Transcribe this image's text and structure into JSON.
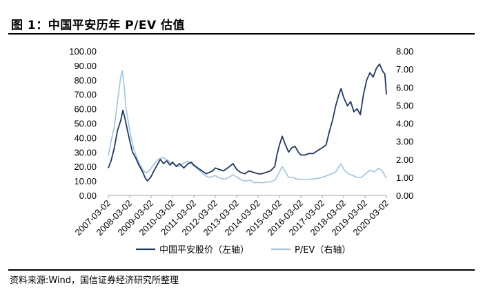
{
  "figure": {
    "title": "图 1：中国平安历年 P/EV 估值",
    "source": "资料来源:Wind，国信证券经济研究所整理"
  },
  "chart_data": {
    "type": "line",
    "title": "中国平安历年 P/EV 估值",
    "x_tick_labels": [
      "2007-03-02",
      "2008-03-02",
      "2009-03-02",
      "2010-03-02",
      "2011-03-02",
      "2012-03-02",
      "2013-03-02",
      "2014-03-02",
      "2015-03-02",
      "2016-03-02",
      "2017-03-02",
      "2018-03-02",
      "2019-03-02",
      "2020-03-02"
    ],
    "left_axis": {
      "range": [
        0,
        100
      ],
      "ticks": [
        "0.00",
        "10.00",
        "20.00",
        "30.00",
        "40.00",
        "50.00",
        "60.00",
        "70.00",
        "80.00",
        "90.00",
        "100.00"
      ]
    },
    "right_axis": {
      "range": [
        0,
        8
      ],
      "ticks": [
        "0.00",
        "1.00",
        "2.00",
        "3.00",
        "4.00",
        "5.00",
        "6.00",
        "7.00",
        "8.00"
      ]
    },
    "x_range": [
      2007.17,
      2020.17
    ],
    "series": [
      {
        "name": "中国平安股价（左轴）",
        "axis": "left",
        "color": "#1f3864",
        "points": [
          [
            2007.17,
            19
          ],
          [
            2007.3,
            24
          ],
          [
            2007.45,
            33
          ],
          [
            2007.6,
            45
          ],
          [
            2007.75,
            52
          ],
          [
            2007.85,
            59
          ],
          [
            2007.95,
            53
          ],
          [
            2008.05,
            46
          ],
          [
            2008.17,
            38
          ],
          [
            2008.3,
            30
          ],
          [
            2008.45,
            26
          ],
          [
            2008.6,
            21
          ],
          [
            2008.75,
            17
          ],
          [
            2008.9,
            12
          ],
          [
            2009.0,
            10
          ],
          [
            2009.17,
            13
          ],
          [
            2009.3,
            17
          ],
          [
            2009.45,
            21
          ],
          [
            2009.6,
            25
          ],
          [
            2009.75,
            22
          ],
          [
            2009.9,
            24
          ],
          [
            2010.05,
            21
          ],
          [
            2010.17,
            23
          ],
          [
            2010.35,
            20
          ],
          [
            2010.5,
            22
          ],
          [
            2010.7,
            19
          ],
          [
            2010.9,
            22
          ],
          [
            2011.05,
            23
          ],
          [
            2011.17,
            21
          ],
          [
            2011.35,
            19
          ],
          [
            2011.55,
            17
          ],
          [
            2011.75,
            15
          ],
          [
            2011.9,
            16
          ],
          [
            2012.05,
            17
          ],
          [
            2012.17,
            19
          ],
          [
            2012.35,
            18
          ],
          [
            2012.55,
            17
          ],
          [
            2012.75,
            19
          ],
          [
            2013.0,
            22
          ],
          [
            2013.17,
            18
          ],
          [
            2013.35,
            16
          ],
          [
            2013.55,
            15
          ],
          [
            2013.75,
            17
          ],
          [
            2013.95,
            16
          ],
          [
            2014.17,
            15
          ],
          [
            2014.35,
            15
          ],
          [
            2014.55,
            16
          ],
          [
            2014.75,
            17
          ],
          [
            2014.95,
            20
          ],
          [
            2015.05,
            28
          ],
          [
            2015.17,
            35
          ],
          [
            2015.3,
            41
          ],
          [
            2015.45,
            35
          ],
          [
            2015.6,
            30
          ],
          [
            2015.75,
            33
          ],
          [
            2015.9,
            34
          ],
          [
            2016.05,
            30
          ],
          [
            2016.17,
            28
          ],
          [
            2016.35,
            28
          ],
          [
            2016.55,
            29
          ],
          [
            2016.75,
            29
          ],
          [
            2016.95,
            31
          ],
          [
            2017.17,
            33
          ],
          [
            2017.35,
            35
          ],
          [
            2017.5,
            44
          ],
          [
            2017.65,
            52
          ],
          [
            2017.8,
            62
          ],
          [
            2017.95,
            70
          ],
          [
            2018.05,
            74
          ],
          [
            2018.17,
            68
          ],
          [
            2018.35,
            62
          ],
          [
            2018.5,
            65
          ],
          [
            2018.65,
            58
          ],
          [
            2018.8,
            60
          ],
          [
            2018.95,
            56
          ],
          [
            2019.1,
            70
          ],
          [
            2019.25,
            80
          ],
          [
            2019.4,
            85
          ],
          [
            2019.55,
            82
          ],
          [
            2019.7,
            88
          ],
          [
            2019.85,
            91
          ],
          [
            2020.0,
            86
          ],
          [
            2020.1,
            84
          ],
          [
            2020.17,
            70
          ]
        ]
      },
      {
        "name": "P/EV（右轴）",
        "axis": "right",
        "color": "#9dc3e6",
        "points": [
          [
            2007.17,
            2.2
          ],
          [
            2007.3,
            3.0
          ],
          [
            2007.45,
            3.8
          ],
          [
            2007.6,
            5.2
          ],
          [
            2007.75,
            6.6
          ],
          [
            2007.82,
            6.9
          ],
          [
            2007.9,
            6.2
          ],
          [
            2008.0,
            4.8
          ],
          [
            2008.17,
            3.6
          ],
          [
            2008.35,
            2.6
          ],
          [
            2008.5,
            2.1
          ],
          [
            2008.65,
            1.7
          ],
          [
            2008.8,
            1.4
          ],
          [
            2008.9,
            1.25
          ],
          [
            2009.0,
            1.3
          ],
          [
            2009.17,
            1.5
          ],
          [
            2009.35,
            1.8
          ],
          [
            2009.5,
            2.0
          ],
          [
            2009.7,
            2.1
          ],
          [
            2009.9,
            2.0
          ],
          [
            2010.1,
            1.8
          ],
          [
            2010.3,
            1.7
          ],
          [
            2010.5,
            1.6
          ],
          [
            2010.7,
            1.8
          ],
          [
            2010.9,
            1.9
          ],
          [
            2011.1,
            1.7
          ],
          [
            2011.3,
            1.5
          ],
          [
            2011.5,
            1.3
          ],
          [
            2011.7,
            1.1
          ],
          [
            2011.9,
            1.0
          ],
          [
            2012.17,
            1.1
          ],
          [
            2012.4,
            0.95
          ],
          [
            2012.6,
            0.9
          ],
          [
            2012.8,
            1.0
          ],
          [
            2013.0,
            1.15
          ],
          [
            2013.2,
            1.0
          ],
          [
            2013.4,
            0.85
          ],
          [
            2013.6,
            0.8
          ],
          [
            2013.8,
            0.85
          ],
          [
            2014.0,
            0.7
          ],
          [
            2014.17,
            0.72
          ],
          [
            2014.4,
            0.7
          ],
          [
            2014.6,
            0.75
          ],
          [
            2014.8,
            0.75
          ],
          [
            2015.0,
            0.9
          ],
          [
            2015.17,
            1.3
          ],
          [
            2015.3,
            1.6
          ],
          [
            2015.45,
            1.3
          ],
          [
            2015.6,
            1.0
          ],
          [
            2015.8,
            1.0
          ],
          [
            2016.0,
            0.9
          ],
          [
            2016.17,
            0.9
          ],
          [
            2016.4,
            0.88
          ],
          [
            2016.6,
            0.9
          ],
          [
            2016.8,
            0.92
          ],
          [
            2017.0,
            0.95
          ],
          [
            2017.17,
            1.0
          ],
          [
            2017.4,
            1.1
          ],
          [
            2017.6,
            1.2
          ],
          [
            2017.8,
            1.3
          ],
          [
            2017.95,
            1.6
          ],
          [
            2018.05,
            1.75
          ],
          [
            2018.2,
            1.4
          ],
          [
            2018.4,
            1.2
          ],
          [
            2018.6,
            1.1
          ],
          [
            2018.8,
            1.0
          ],
          [
            2019.0,
            1.0
          ],
          [
            2019.2,
            1.2
          ],
          [
            2019.4,
            1.4
          ],
          [
            2019.6,
            1.3
          ],
          [
            2019.8,
            1.5
          ],
          [
            2019.95,
            1.4
          ],
          [
            2020.05,
            1.2
          ],
          [
            2020.17,
            0.95
          ]
        ]
      }
    ],
    "legend": {
      "position": "bottom"
    }
  }
}
